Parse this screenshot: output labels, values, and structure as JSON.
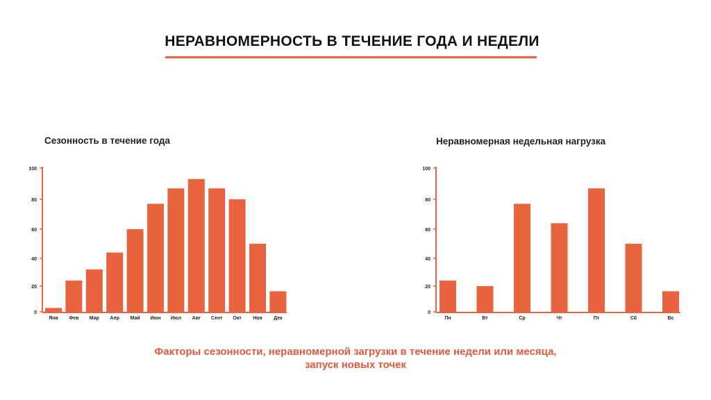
{
  "slide": {
    "title": "НЕРАВНОМЕРНОСТЬ В ТЕЧЕНИЕ ГОДА И НЕДЕЛИ",
    "footer_line1": "Факторы сезонности, неравномерной загрузки в течение недели или месяца,",
    "footer_line2": "запуск новых точек",
    "accent_color": "#e8643f"
  },
  "chart_data": [
    {
      "type": "bar",
      "title": "Сезонность в течение года",
      "categories": [
        "Янв",
        "Фев",
        "Мар",
        "Апр",
        "Май",
        "Июн",
        "Июл",
        "Авг",
        "Сент",
        "Окт",
        "Ноя",
        "Дек"
      ],
      "values": [
        3,
        24,
        32,
        44,
        60,
        77,
        87,
        93,
        87,
        80,
        50,
        16
      ],
      "ylim": [
        0,
        100
      ],
      "yticks": [
        0,
        20,
        40,
        60,
        80,
        100
      ],
      "grid": false,
      "color": "#e8643f"
    },
    {
      "type": "bar",
      "title": "Неравномерная недельная нагрузка",
      "categories": [
        "Пн",
        "Вт",
        "Ср",
        "Чт",
        "Пт",
        "Сб",
        "Вс"
      ],
      "values": [
        24,
        20,
        77,
        64,
        87,
        50,
        16
      ],
      "ylim": [
        0,
        100
      ],
      "yticks": [
        0,
        20,
        40,
        60,
        80,
        100
      ],
      "grid": false,
      "color": "#e8643f"
    }
  ]
}
